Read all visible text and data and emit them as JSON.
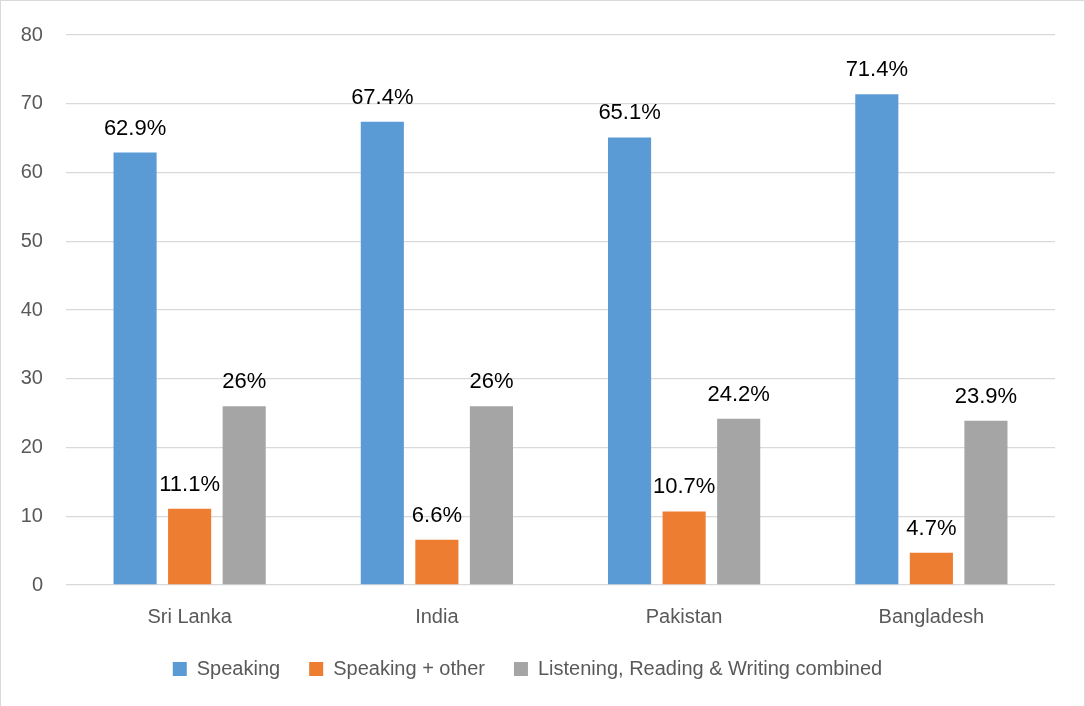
{
  "chart_data": {
    "type": "bar",
    "categories": [
      "Sri Lanka",
      "India",
      "Pakistan",
      "Bangladesh"
    ],
    "series": [
      {
        "name": "Speaking",
        "color": "#5b9bd5",
        "values": [
          62.9,
          67.4,
          65.1,
          71.4
        ],
        "value_labels": [
          "62.9%",
          "67.4%",
          "65.1%",
          "71.4%"
        ]
      },
      {
        "name": "Speaking + other",
        "color": "#ed7d31",
        "values": [
          11.1,
          6.6,
          10.7,
          4.7
        ],
        "value_labels": [
          "11.1%",
          "6.6%",
          "10.7%",
          "4.7%"
        ]
      },
      {
        "name": "Listening, Reading & Writing combined",
        "color": "#a5a5a5",
        "values": [
          26,
          26,
          24.2,
          23.9
        ],
        "value_labels": [
          "26%",
          "26%",
          "24.2%",
          "23.9%"
        ]
      }
    ],
    "ylim": [
      0,
      80
    ],
    "yticks": [
      0,
      10,
      20,
      30,
      40,
      50,
      60,
      70,
      80
    ],
    "grid": "y",
    "legend": "bottom"
  }
}
